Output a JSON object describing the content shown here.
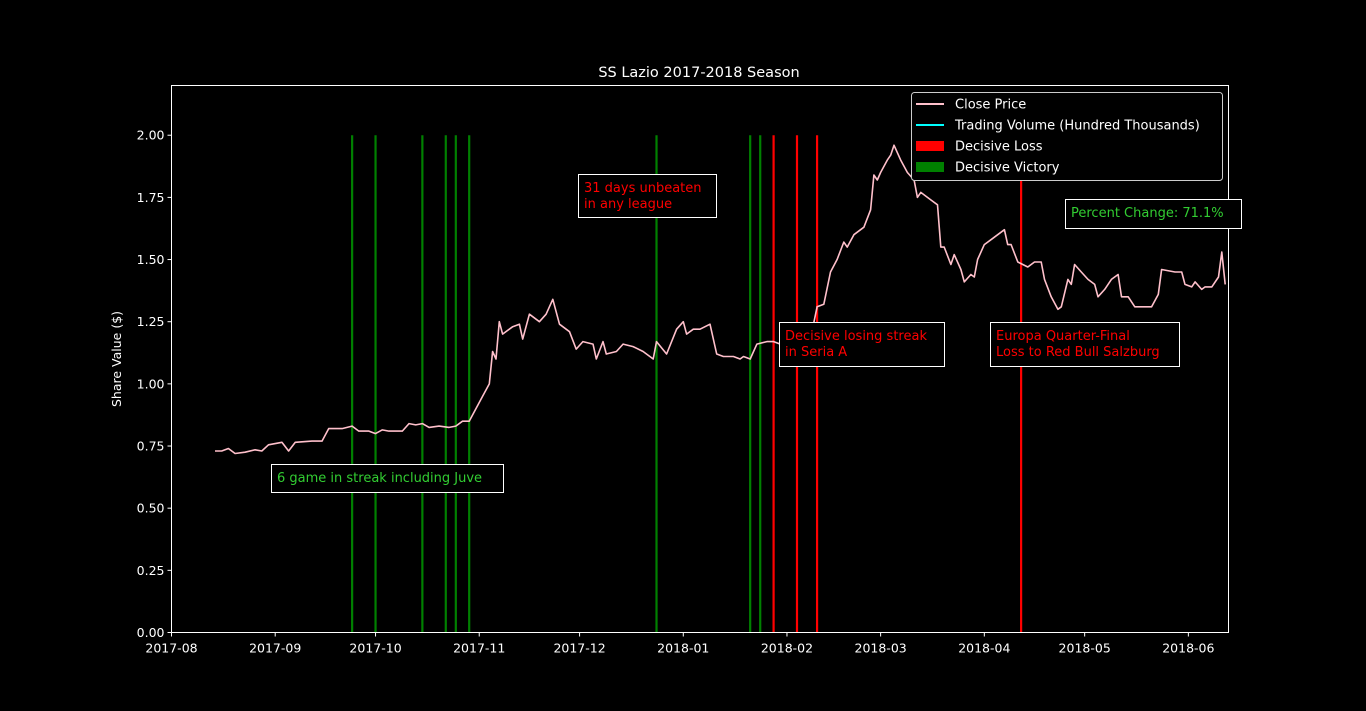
{
  "chart_data": {
    "type": "line",
    "title": "SS Lazio 2017-2018 Season",
    "xlabel": "",
    "ylabel": "Share Value ($)",
    "xlim": [
      "2017-08-01",
      "2018-06-13"
    ],
    "ylim": [
      0,
      2.2
    ],
    "xticks": [
      "2017-08-01",
      "2017-09-01",
      "2017-10-01",
      "2017-11-01",
      "2017-12-01",
      "2018-01-01",
      "2018-02-01",
      "2018-03-01",
      "2018-04-01",
      "2018-05-01",
      "2018-06-01"
    ],
    "xtick_labels": [
      "2017-08",
      "2017-09",
      "2017-10",
      "2017-11",
      "2017-12",
      "2018-01",
      "2018-02",
      "2018-03",
      "2018-04",
      "2018-05",
      "2018-06"
    ],
    "yticks": [
      0,
      0.25,
      0.5,
      0.75,
      1.0,
      1.25,
      1.5,
      1.75,
      2.0
    ],
    "ytick_labels": [
      "0.00",
      "0.25",
      "0.50",
      "0.75",
      "1.00",
      "1.25",
      "1.50",
      "1.75",
      "2.00"
    ],
    "grid": false,
    "legend_position": "top-right",
    "legend": [
      {
        "label": "Close Price",
        "kind": "line",
        "color": "#ffc0cb"
      },
      {
        "label": "Trading Volume (Hundred Thousands)",
        "kind": "line",
        "color": "#00ffff"
      },
      {
        "label": "Decisive Loss",
        "kind": "patch",
        "color": "#ff0000"
      },
      {
        "label": "Decisive Victory",
        "kind": "patch",
        "color": "#008000"
      }
    ],
    "series": [
      {
        "name": "Close Price",
        "color": "#ffc0cb",
        "points": [
          [
            "2017-08-14",
            0.73
          ],
          [
            "2017-08-16",
            0.73
          ],
          [
            "2017-08-18",
            0.74
          ],
          [
            "2017-08-20",
            0.72
          ],
          [
            "2017-08-23",
            0.725
          ],
          [
            "2017-08-26",
            0.735
          ],
          [
            "2017-08-28",
            0.73
          ],
          [
            "2017-08-30",
            0.755
          ],
          [
            "2017-09-03",
            0.765
          ],
          [
            "2017-09-05",
            0.73
          ],
          [
            "2017-09-07",
            0.765
          ],
          [
            "2017-09-12",
            0.77
          ],
          [
            "2017-09-15",
            0.77
          ],
          [
            "2017-09-17",
            0.82
          ],
          [
            "2017-09-21",
            0.82
          ],
          [
            "2017-09-24",
            0.83
          ],
          [
            "2017-09-26",
            0.81
          ],
          [
            "2017-09-29",
            0.81
          ],
          [
            "2017-10-01",
            0.8
          ],
          [
            "2017-10-03",
            0.815
          ],
          [
            "2017-10-05",
            0.81
          ],
          [
            "2017-10-09",
            0.81
          ],
          [
            "2017-10-11",
            0.84
          ],
          [
            "2017-10-13",
            0.835
          ],
          [
            "2017-10-15",
            0.84
          ],
          [
            "2017-10-17",
            0.825
          ],
          [
            "2017-10-20",
            0.83
          ],
          [
            "2017-10-23",
            0.825
          ],
          [
            "2017-10-25",
            0.83
          ],
          [
            "2017-10-27",
            0.85
          ],
          [
            "2017-10-29",
            0.85
          ],
          [
            "2017-11-02",
            0.95
          ],
          [
            "2017-11-04",
            1.0
          ],
          [
            "2017-11-05",
            1.13
          ],
          [
            "2017-11-06",
            1.1
          ],
          [
            "2017-11-07",
            1.25
          ],
          [
            "2017-11-08",
            1.2
          ],
          [
            "2017-11-11",
            1.23
          ],
          [
            "2017-11-13",
            1.24
          ],
          [
            "2017-11-14",
            1.18
          ],
          [
            "2017-11-16",
            1.28
          ],
          [
            "2017-11-19",
            1.25
          ],
          [
            "2017-11-21",
            1.28
          ],
          [
            "2017-11-23",
            1.34
          ],
          [
            "2017-11-25",
            1.24
          ],
          [
            "2017-11-28",
            1.21
          ],
          [
            "2017-11-30",
            1.14
          ],
          [
            "2017-12-02",
            1.17
          ],
          [
            "2017-12-05",
            1.16
          ],
          [
            "2017-12-06",
            1.1
          ],
          [
            "2017-12-08",
            1.17
          ],
          [
            "2017-12-09",
            1.12
          ],
          [
            "2017-12-12",
            1.13
          ],
          [
            "2017-12-14",
            1.16
          ],
          [
            "2017-12-17",
            1.15
          ],
          [
            "2017-12-20",
            1.13
          ],
          [
            "2017-12-23",
            1.1
          ],
          [
            "2017-12-24",
            1.17
          ],
          [
            "2017-12-27",
            1.12
          ],
          [
            "2017-12-30",
            1.22
          ],
          [
            "2018-01-01",
            1.25
          ],
          [
            "2018-01-02",
            1.2
          ],
          [
            "2018-01-04",
            1.22
          ],
          [
            "2018-01-06",
            1.22
          ],
          [
            "2018-01-09",
            1.24
          ],
          [
            "2018-01-11",
            1.12
          ],
          [
            "2018-01-13",
            1.11
          ],
          [
            "2018-01-16",
            1.11
          ],
          [
            "2018-01-18",
            1.1
          ],
          [
            "2018-01-19",
            1.11
          ],
          [
            "2018-01-21",
            1.1
          ],
          [
            "2018-01-23",
            1.16
          ],
          [
            "2018-01-26",
            1.17
          ],
          [
            "2018-01-28",
            1.17
          ],
          [
            "2018-01-30",
            1.16
          ],
          [
            "2018-01-31",
            1.17
          ],
          [
            "2018-02-02",
            1.15
          ],
          [
            "2018-02-05",
            1.17
          ],
          [
            "2018-02-07",
            1.19
          ],
          [
            "2018-02-08",
            1.18
          ],
          [
            "2018-02-10",
            1.31
          ],
          [
            "2018-02-12",
            1.32
          ],
          [
            "2018-02-14",
            1.45
          ],
          [
            "2018-02-16",
            1.5
          ],
          [
            "2018-02-18",
            1.57
          ],
          [
            "2018-02-19",
            1.55
          ],
          [
            "2018-02-21",
            1.6
          ],
          [
            "2018-02-24",
            1.63
          ],
          [
            "2018-02-26",
            1.7
          ],
          [
            "2018-02-27",
            1.84
          ],
          [
            "2018-02-28",
            1.82
          ],
          [
            "2018-03-01",
            1.85
          ],
          [
            "2018-03-03",
            1.9
          ],
          [
            "2018-03-04",
            1.92
          ],
          [
            "2018-03-05",
            1.96
          ],
          [
            "2018-03-07",
            1.9
          ],
          [
            "2018-03-09",
            1.85
          ],
          [
            "2018-03-11",
            1.82
          ],
          [
            "2018-03-12",
            1.75
          ],
          [
            "2018-03-13",
            1.77
          ],
          [
            "2018-03-16",
            1.74
          ],
          [
            "2018-03-18",
            1.72
          ],
          [
            "2018-03-19",
            1.55
          ],
          [
            "2018-03-20",
            1.55
          ],
          [
            "2018-03-22",
            1.48
          ],
          [
            "2018-03-23",
            1.52
          ],
          [
            "2018-03-25",
            1.46
          ],
          [
            "2018-03-26",
            1.41
          ],
          [
            "2018-03-28",
            1.44
          ],
          [
            "2018-03-29",
            1.43
          ],
          [
            "2018-03-30",
            1.5
          ],
          [
            "2018-04-01",
            1.56
          ],
          [
            "2018-04-03",
            1.58
          ],
          [
            "2018-04-07",
            1.62
          ],
          [
            "2018-04-08",
            1.56
          ],
          [
            "2018-04-09",
            1.56
          ],
          [
            "2018-04-11",
            1.49
          ],
          [
            "2018-04-14",
            1.47
          ],
          [
            "2018-04-16",
            1.49
          ],
          [
            "2018-04-18",
            1.49
          ],
          [
            "2018-04-19",
            1.42
          ],
          [
            "2018-04-21",
            1.35
          ],
          [
            "2018-04-23",
            1.3
          ],
          [
            "2018-04-24",
            1.31
          ],
          [
            "2018-04-26",
            1.42
          ],
          [
            "2018-04-27",
            1.4
          ],
          [
            "2018-04-28",
            1.48
          ],
          [
            "2018-04-30",
            1.45
          ],
          [
            "2018-05-02",
            1.42
          ],
          [
            "2018-05-04",
            1.4
          ],
          [
            "2018-05-05",
            1.35
          ],
          [
            "2018-05-07",
            1.38
          ],
          [
            "2018-05-09",
            1.42
          ],
          [
            "2018-05-11",
            1.44
          ],
          [
            "2018-05-12",
            1.35
          ],
          [
            "2018-05-14",
            1.35
          ],
          [
            "2018-05-16",
            1.31
          ],
          [
            "2018-05-19",
            1.31
          ],
          [
            "2018-05-21",
            1.31
          ],
          [
            "2018-05-23",
            1.36
          ],
          [
            "2018-05-24",
            1.46
          ],
          [
            "2018-05-28",
            1.45
          ],
          [
            "2018-05-30",
            1.45
          ],
          [
            "2018-05-31",
            1.4
          ],
          [
            "2018-06-02",
            1.39
          ],
          [
            "2018-06-03",
            1.41
          ],
          [
            "2018-06-05",
            1.38
          ],
          [
            "2018-06-06",
            1.39
          ],
          [
            "2018-06-08",
            1.39
          ],
          [
            "2018-06-10",
            1.43
          ],
          [
            "2018-06-11",
            1.53
          ],
          [
            "2018-06-12",
            1.4
          ]
        ]
      }
    ],
    "vertical_lines": [
      {
        "date": "2017-09-24",
        "kind": "Decisive Victory",
        "color": "#008000"
      },
      {
        "date": "2017-10-01",
        "kind": "Decisive Victory",
        "color": "#008000"
      },
      {
        "date": "2017-10-15",
        "kind": "Decisive Victory",
        "color": "#008000"
      },
      {
        "date": "2017-10-22",
        "kind": "Decisive Victory",
        "color": "#008000"
      },
      {
        "date": "2017-10-25",
        "kind": "Decisive Victory",
        "color": "#008000"
      },
      {
        "date": "2017-10-29",
        "kind": "Decisive Victory",
        "color": "#008000"
      },
      {
        "date": "2017-12-24",
        "kind": "Decisive Victory",
        "color": "#008000"
      },
      {
        "date": "2018-01-21",
        "kind": "Decisive Victory",
        "color": "#008000"
      },
      {
        "date": "2018-01-24",
        "kind": "Decisive Victory",
        "color": "#008000"
      },
      {
        "date": "2018-01-28",
        "kind": "Decisive Loss",
        "color": "#ff0000"
      },
      {
        "date": "2018-02-04",
        "kind": "Decisive Loss",
        "color": "#ff0000"
      },
      {
        "date": "2018-02-10",
        "kind": "Decisive Loss",
        "color": "#ff0000"
      },
      {
        "date": "2018-04-12",
        "kind": "Decisive Loss",
        "color": "#ff0000"
      }
    ],
    "annotations": [
      {
        "lines": [
          "31 days unbeaten",
          "in any league"
        ],
        "color": "#ff0000"
      },
      {
        "lines": [
          "Percent Change: 71.1%"
        ],
        "color": "#32cd32"
      },
      {
        "lines": [
          "Decisive losing streak",
          "in Seria A"
        ],
        "color": "#ff0000"
      },
      {
        "lines": [
          "Europa Quarter-Final",
          "Loss to Red Bull Salzburg"
        ],
        "color": "#ff0000"
      },
      {
        "lines": [
          "6 game in streak including Juve"
        ],
        "color": "#32cd32"
      }
    ]
  }
}
